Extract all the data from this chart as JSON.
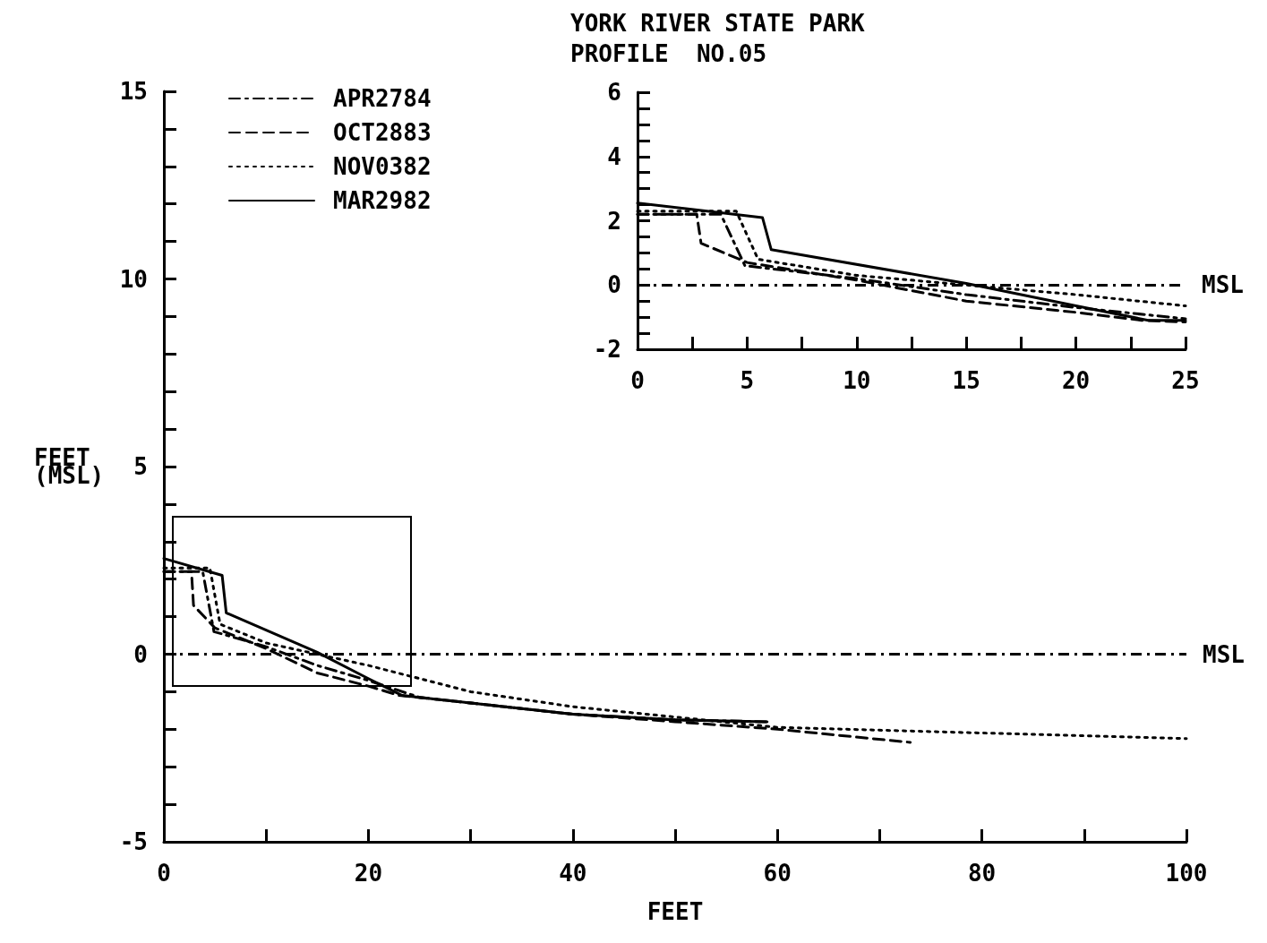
{
  "chart_data": [
    {
      "type": "line",
      "xlabel": "FEET",
      "ylabel": "FEET\n(MSL)",
      "xlim": [
        0,
        100
      ],
      "ylim": [
        -5,
        15
      ],
      "xticks": [
        0,
        {
          "value": 10,
          "label": null
        },
        20,
        {
          "value": 30,
          "label": null
        },
        40,
        {
          "value": 50,
          "label": null
        },
        60,
        {
          "value": 70,
          "label": null
        },
        80,
        {
          "value": 90,
          "label": null
        },
        100
      ],
      "yticks": [
        -5,
        {
          "value": -4,
          "label": null
        },
        {
          "value": -3,
          "label": null
        },
        {
          "value": -2,
          "label": null
        },
        {
          "value": -1,
          "label": null
        },
        0,
        {
          "value": 1,
          "label": null
        },
        {
          "value": 2,
          "label": null
        },
        {
          "value": 3,
          "label": null
        },
        {
          "value": 4,
          "label": null
        },
        5,
        {
          "value": 6,
          "label": null
        },
        {
          "value": 7,
          "label": null
        },
        {
          "value": 8,
          "label": null
        },
        {
          "value": 9,
          "label": null
        },
        10,
        {
          "value": 11,
          "label": null
        },
        {
          "value": 12,
          "label": null
        },
        {
          "value": 13,
          "label": null
        },
        {
          "value": 14,
          "label": null
        },
        15
      ],
      "legend": "top left",
      "marker": "none",
      "ref_lines": [
        {
          "axis": "y",
          "value": 0,
          "label": "MSL",
          "line_style": "dashdot",
          "color": "#000000"
        }
      ],
      "series": [
        {
          "name": "APR2784",
          "color": "#000000",
          "line_style": "dashdot",
          "x": [
            0,
            3.8,
            4.9,
            10,
            15,
            20,
            25,
            30,
            40,
            50,
            59
          ],
          "values": [
            2.2,
            2.2,
            0.6,
            0.2,
            -0.3,
            -0.7,
            -1.15,
            -1.3,
            -1.6,
            -1.75,
            -1.8
          ]
        },
        {
          "name": "OCT2883",
          "color": "#000000",
          "line_style": "dashed",
          "x": [
            0,
            2.7,
            2.9,
            5,
            10,
            15,
            20,
            23,
            30,
            40,
            50,
            60,
            73
          ],
          "values": [
            2.2,
            2.2,
            1.3,
            0.7,
            0.15,
            -0.5,
            -0.85,
            -1.1,
            -1.3,
            -1.6,
            -1.8,
            -2.0,
            -2.35
          ]
        },
        {
          "name": "NOV0382",
          "color": "#000000",
          "line_style": "dotted",
          "x": [
            0,
            4.5,
            5.5,
            10,
            15,
            20,
            25,
            30,
            40,
            60,
            80,
            100
          ],
          "values": [
            2.3,
            2.3,
            0.8,
            0.3,
            0.0,
            -0.3,
            -0.65,
            -1.0,
            -1.4,
            -1.95,
            -2.1,
            -2.25
          ]
        },
        {
          "name": "MAR2982",
          "color": "#000000",
          "line_style": "solid",
          "x": [
            0,
            5.7,
            6.1,
            15,
            20,
            23.3,
            25,
            30,
            40,
            50,
            59
          ],
          "values": [
            2.55,
            2.1,
            1.1,
            0.05,
            -0.65,
            -1.1,
            -1.15,
            -1.3,
            -1.6,
            -1.75,
            -1.8
          ]
        }
      ]
    },
    {
      "type": "line",
      "title": "YORK RIVER STATE PARK",
      "subtitle": "PROFILE  NO.05",
      "xlim": [
        0,
        25
      ],
      "ylim": [
        -2,
        6
      ],
      "xticks": [
        0,
        {
          "value": 2.5,
          "label": null
        },
        5,
        {
          "value": 7.5,
          "label": null
        },
        10,
        {
          "value": 12.5,
          "label": null
        },
        15,
        {
          "value": 17.5,
          "label": null
        },
        20,
        {
          "value": 22.5,
          "label": null
        },
        25
      ],
      "yticks": [
        -2,
        {
          "value": -1.5,
          "label": null
        },
        {
          "value": -1,
          "label": null
        },
        {
          "value": -0.5,
          "label": null
        },
        0,
        {
          "value": 0.5,
          "label": null
        },
        {
          "value": 1,
          "label": null
        },
        {
          "value": 1.5,
          "label": null
        },
        2,
        {
          "value": 2.5,
          "label": null
        },
        {
          "value": 3,
          "label": null
        },
        {
          "value": 3.5,
          "label": null
        },
        4,
        {
          "value": 4.5,
          "label": null
        },
        {
          "value": 5,
          "label": null
        },
        {
          "value": 5.5,
          "label": null
        },
        6
      ],
      "marker": "none",
      "ref_lines": [
        {
          "axis": "y",
          "value": 0,
          "label": "MSL",
          "line_style": "dashdot",
          "color": "#000000"
        }
      ],
      "series": [
        {
          "color": "#000000",
          "line_style": "dashdot",
          "x": [
            0,
            3.8,
            4.9,
            10,
            15,
            20,
            25
          ],
          "values": [
            2.2,
            2.2,
            0.6,
            0.2,
            -0.3,
            -0.7,
            -1.05
          ]
        },
        {
          "color": "#000000",
          "line_style": "dashed",
          "x": [
            0,
            2.7,
            2.9,
            5,
            10,
            15,
            20,
            23,
            25
          ],
          "values": [
            2.2,
            2.2,
            1.3,
            0.7,
            0.15,
            -0.5,
            -0.85,
            -1.1,
            -1.15
          ]
        },
        {
          "color": "#000000",
          "line_style": "dotted",
          "x": [
            0,
            4.5,
            5.5,
            10,
            15,
            20,
            25
          ],
          "values": [
            2.3,
            2.3,
            0.8,
            0.3,
            0.0,
            -0.3,
            -0.65
          ]
        },
        {
          "color": "#000000",
          "line_style": "solid",
          "x": [
            0,
            5.7,
            6.1,
            15,
            20,
            23.3,
            25
          ],
          "values": [
            2.55,
            2.1,
            1.1,
            0.05,
            -0.65,
            -1.1,
            -1.1
          ]
        }
      ]
    }
  ]
}
